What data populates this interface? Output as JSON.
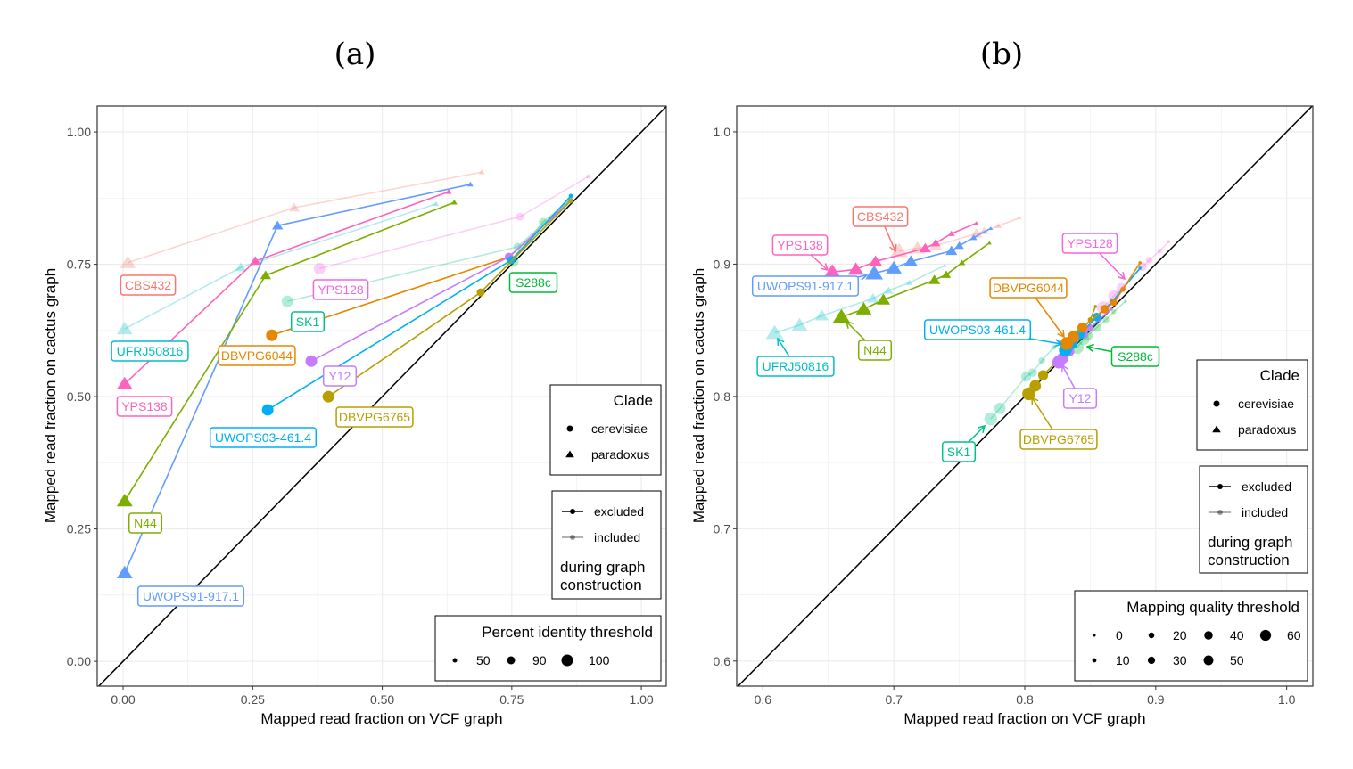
{
  "chart_data": [
    {
      "type": "scatter",
      "title": "(a)",
      "xlabel": "Mapped read fraction on VCF graph",
      "ylabel": "Mapped read fraction on cactus graph",
      "xlim": [
        -0.05,
        1.048
      ],
      "ylim": [
        -0.047,
        1.049
      ],
      "xticks": [
        "0.00",
        "0.25",
        "0.50",
        "0.75",
        "1.00"
      ],
      "yticks": [
        "0.00",
        "0.25",
        "0.50",
        "0.75",
        "1.00"
      ],
      "grid": true,
      "diagonal": "y = x",
      "legends": {
        "clade": {
          "title": "Clade",
          "items": [
            "cerevisiae",
            "paradoxus"
          ]
        },
        "graph": {
          "items": [
            "excluded",
            "included"
          ],
          "caption": [
            "during graph",
            "construction"
          ]
        },
        "size": {
          "title": "Percent identity threshold",
          "items": [
            "50",
            "90",
            "100"
          ]
        }
      },
      "series": [
        {
          "name": "CBS432",
          "clade": "paradoxus",
          "graph": "included",
          "color": "#F8766D",
          "points": [
            {
              "t": 100,
              "x": 0.009,
              "y": 0.753
            },
            {
              "t": 90,
              "x": 0.33,
              "y": 0.857
            },
            {
              "t": 50,
              "x": 0.692,
              "y": 0.924
            }
          ]
        },
        {
          "name": "UFRJ50816",
          "clade": "paradoxus",
          "graph": "included",
          "color": "#00BFC4",
          "points": [
            {
              "t": 100,
              "x": 0.003,
              "y": 0.628
            },
            {
              "t": 90,
              "x": 0.227,
              "y": 0.744
            },
            {
              "t": 50,
              "x": 0.604,
              "y": 0.864
            }
          ]
        },
        {
          "name": "YPS128",
          "clade": "cerevisiae",
          "graph": "included",
          "color": "#F564E3",
          "points": [
            {
              "t": 100,
              "x": 0.379,
              "y": 0.742
            },
            {
              "t": 90,
              "x": 0.766,
              "y": 0.84
            },
            {
              "t": 50,
              "x": 0.898,
              "y": 0.916
            }
          ]
        },
        {
          "name": "SK1",
          "clade": "cerevisiae",
          "graph": "included",
          "color": "#00C08B",
          "points": [
            {
              "t": 100,
              "x": 0.317,
              "y": 0.68
            },
            {
              "t": 90,
              "x": 0.761,
              "y": 0.783
            },
            {
              "t": 50,
              "x": 0.86,
              "y": 0.87
            }
          ]
        },
        {
          "name": "S288c",
          "clade": "cerevisiae",
          "graph": "included",
          "color": "#00BA38",
          "points": [
            {
              "t": 100,
              "x": 0.752,
              "y": 0.756
            },
            {
              "t": 90,
              "x": 0.81,
              "y": 0.83
            },
            {
              "t": 50,
              "x": 0.864,
              "y": 0.872
            }
          ]
        },
        {
          "name": "UWOPS91-917.1",
          "clade": "paradoxus",
          "graph": "excluded",
          "color": "#619CFF",
          "points": [
            {
              "t": 100,
              "x": 0.003,
              "y": 0.167
            },
            {
              "t": 90,
              "x": 0.298,
              "y": 0.823
            },
            {
              "t": 50,
              "x": 0.67,
              "y": 0.901
            }
          ]
        },
        {
          "name": "YPS138",
          "clade": "paradoxus",
          "graph": "excluded",
          "color": "#FF62BC",
          "points": [
            {
              "t": 100,
              "x": 0.003,
              "y": 0.524
            },
            {
              "t": 90,
              "x": 0.255,
              "y": 0.756
            },
            {
              "t": 50,
              "x": 0.628,
              "y": 0.887
            }
          ]
        },
        {
          "name": "N44",
          "clade": "paradoxus",
          "graph": "excluded",
          "color": "#7CAE00",
          "points": [
            {
              "t": 100,
              "x": 0.003,
              "y": 0.303
            },
            {
              "t": 90,
              "x": 0.275,
              "y": 0.729
            },
            {
              "t": 50,
              "x": 0.639,
              "y": 0.867
            }
          ]
        },
        {
          "name": "DBVPG6044",
          "clade": "cerevisiae",
          "graph": "excluded",
          "color": "#E58700",
          "points": [
            {
              "t": 100,
              "x": 0.287,
              "y": 0.616
            },
            {
              "t": 90,
              "x": 0.745,
              "y": 0.764
            },
            {
              "t": 50,
              "x": 0.864,
              "y": 0.87
            }
          ]
        },
        {
          "name": "Y12",
          "clade": "cerevisiae",
          "graph": "excluded",
          "color": "#C77CFF",
          "points": [
            {
              "t": 100,
              "x": 0.363,
              "y": 0.567
            },
            {
              "t": 90,
              "x": 0.744,
              "y": 0.764
            },
            {
              "t": 50,
              "x": 0.864,
              "y": 0.87
            }
          ]
        },
        {
          "name": "UWOPS03-461.4",
          "clade": "cerevisiae",
          "graph": "excluded",
          "color": "#00B0F6",
          "points": [
            {
              "t": 100,
              "x": 0.279,
              "y": 0.475
            },
            {
              "t": 90,
              "x": 0.749,
              "y": 0.758
            },
            {
              "t": 50,
              "x": 0.864,
              "y": 0.879
            }
          ]
        },
        {
          "name": "DBVPG6765",
          "clade": "cerevisiae",
          "graph": "excluded",
          "color": "#B79F00",
          "points": [
            {
              "t": 100,
              "x": 0.396,
              "y": 0.5
            },
            {
              "t": 90,
              "x": 0.69,
              "y": 0.697
            },
            {
              "t": 50,
              "x": 0.864,
              "y": 0.87
            }
          ]
        }
      ]
    },
    {
      "type": "scatter",
      "title": "(b)",
      "xlabel": "Mapped read fraction on VCF graph",
      "ylabel": "Mapped read fraction on cactus graph",
      "xlim": [
        0.58,
        1.02
      ],
      "ylim": [
        0.581,
        1.0195
      ],
      "xticks": [
        "0.6",
        "0.7",
        "0.8",
        "0.9",
        "1.0"
      ],
      "yticks": [
        "0.6",
        "0.7",
        "0.8",
        "0.9",
        "1.0"
      ],
      "grid": true,
      "diagonal": "y = x",
      "legends": {
        "clade": {
          "title": "Clade",
          "items": [
            "cerevisiae",
            "paradoxus"
          ]
        },
        "graph": {
          "items": [
            "excluded",
            "included"
          ],
          "caption": [
            "during graph",
            "construction"
          ]
        },
        "size": {
          "title": "Mapping quality threshold",
          "items": [
            "0",
            "10",
            "20",
            "30",
            "40",
            "50",
            "60"
          ]
        }
      },
      "series": [
        {
          "name": "CBS432",
          "clade": "paradoxus",
          "graph": "included",
          "color": "#F8766D",
          "points": [
            {
              "t": 60,
              "x": 0.704,
              "y": 0.91
            },
            {
              "t": 50,
              "x": 0.718,
              "y": 0.912
            },
            {
              "t": 40,
              "x": 0.732,
              "y": 0.914
            },
            {
              "t": 30,
              "x": 0.763,
              "y": 0.923
            },
            {
              "t": 20,
              "x": 0.769,
              "y": 0.925
            },
            {
              "t": 10,
              "x": 0.78,
              "y": 0.929
            },
            {
              "t": 0,
              "x": 0.796,
              "y": 0.935
            }
          ]
        },
        {
          "name": "UFRJ50816",
          "clade": "paradoxus",
          "graph": "included",
          "color": "#00BFC4",
          "points": [
            {
              "t": 60,
              "x": 0.609,
              "y": 0.848
            },
            {
              "t": 50,
              "x": 0.628,
              "y": 0.854
            },
            {
              "t": 40,
              "x": 0.645,
              "y": 0.861
            },
            {
              "t": 30,
              "x": 0.684,
              "y": 0.874
            },
            {
              "t": 20,
              "x": 0.696,
              "y": 0.88
            },
            {
              "t": 10,
              "x": 0.712,
              "y": 0.886
            },
            {
              "t": 0,
              "x": 0.739,
              "y": 0.899
            }
          ]
        },
        {
          "name": "SK1",
          "clade": "cerevisiae",
          "graph": "included",
          "color": "#00C08B",
          "points": [
            {
              "t": 60,
              "x": 0.774,
              "y": 0.783
            },
            {
              "t": 50,
              "x": 0.781,
              "y": 0.791
            },
            {
              "t": 40,
              "x": 0.801,
              "y": 0.815
            },
            {
              "t": 30,
              "x": 0.806,
              "y": 0.818
            },
            {
              "t": 20,
              "x": 0.813,
              "y": 0.827
            },
            {
              "t": 10,
              "x": 0.822,
              "y": 0.837
            },
            {
              "t": 0,
              "x": 0.827,
              "y": 0.842
            }
          ]
        },
        {
          "name": "S288c",
          "clade": "cerevisiae",
          "graph": "included",
          "color": "#00BA38",
          "points": [
            {
              "t": 60,
              "x": 0.84,
              "y": 0.837
            },
            {
              "t": 50,
              "x": 0.845,
              "y": 0.843
            },
            {
              "t": 40,
              "x": 0.848,
              "y": 0.846
            },
            {
              "t": 30,
              "x": 0.855,
              "y": 0.852
            },
            {
              "t": 20,
              "x": 0.862,
              "y": 0.858
            },
            {
              "t": 10,
              "x": 0.868,
              "y": 0.864
            },
            {
              "t": 0,
              "x": 0.877,
              "y": 0.872
            }
          ]
        },
        {
          "name": "YPS128",
          "clade": "cerevisiae",
          "graph": "included",
          "color": "#F564E3",
          "points": [
            {
              "t": 60,
              "x": 0.86,
              "y": 0.867
            },
            {
              "t": 50,
              "x": 0.868,
              "y": 0.876
            },
            {
              "t": 40,
              "x": 0.874,
              "y": 0.882
            },
            {
              "t": 30,
              "x": 0.89,
              "y": 0.898
            },
            {
              "t": 20,
              "x": 0.895,
              "y": 0.903
            },
            {
              "t": 10,
              "x": 0.903,
              "y": 0.91
            },
            {
              "t": 0,
              "x": 0.91,
              "y": 0.917
            }
          ]
        },
        {
          "name": "YPS138",
          "clade": "paradoxus",
          "graph": "excluded",
          "color": "#FF62BC",
          "points": [
            {
              "t": 60,
              "x": 0.653,
              "y": 0.894
            },
            {
              "t": 50,
              "x": 0.671,
              "y": 0.896
            },
            {
              "t": 40,
              "x": 0.686,
              "y": 0.902
            },
            {
              "t": 30,
              "x": 0.724,
              "y": 0.912
            },
            {
              "t": 20,
              "x": 0.732,
              "y": 0.916
            },
            {
              "t": 10,
              "x": 0.744,
              "y": 0.923
            },
            {
              "t": 0,
              "x": 0.763,
              "y": 0.931
            }
          ]
        },
        {
          "name": "UWOPS91-917.1",
          "clade": "paradoxus",
          "graph": "excluded",
          "color": "#619CFF",
          "points": [
            {
              "t": 60,
              "x": 0.685,
              "y": 0.893
            },
            {
              "t": 50,
              "x": 0.7,
              "y": 0.897
            },
            {
              "t": 40,
              "x": 0.713,
              "y": 0.902
            },
            {
              "t": 30,
              "x": 0.744,
              "y": 0.91
            },
            {
              "t": 20,
              "x": 0.75,
              "y": 0.914
            },
            {
              "t": 10,
              "x": 0.761,
              "y": 0.92
            },
            {
              "t": 0,
              "x": 0.774,
              "y": 0.927
            }
          ]
        },
        {
          "name": "N44",
          "clade": "paradoxus",
          "graph": "excluded",
          "color": "#7CAE00",
          "points": [
            {
              "t": 60,
              "x": 0.66,
              "y": 0.86
            },
            {
              "t": 50,
              "x": 0.677,
              "y": 0.866
            },
            {
              "t": 40,
              "x": 0.692,
              "y": 0.873
            },
            {
              "t": 30,
              "x": 0.731,
              "y": 0.888
            },
            {
              "t": 20,
              "x": 0.74,
              "y": 0.892
            },
            {
              "t": 10,
              "x": 0.752,
              "y": 0.901
            },
            {
              "t": 0,
              "x": 0.773,
              "y": 0.916
            }
          ]
        },
        {
          "name": "DBVPG6765",
          "clade": "cerevisiae",
          "graph": "excluded",
          "color": "#B79F00",
          "points": [
            {
              "t": 60,
              "x": 0.803,
              "y": 0.802
            },
            {
              "t": 50,
              "x": 0.808,
              "y": 0.808
            },
            {
              "t": 40,
              "x": 0.814,
              "y": 0.816
            },
            {
              "t": 30,
              "x": 0.83,
              "y": 0.832
            },
            {
              "t": 20,
              "x": 0.84,
              "y": 0.845
            },
            {
              "t": 10,
              "x": 0.85,
              "y": 0.858
            },
            {
              "t": 0,
              "x": 0.854,
              "y": 0.868
            }
          ]
        },
        {
          "name": "Y12",
          "clade": "cerevisiae",
          "graph": "excluded",
          "color": "#C77CFF",
          "points": [
            {
              "t": 60,
              "x": 0.826,
              "y": 0.826
            },
            {
              "t": 50,
              "x": 0.829,
              "y": 0.829
            },
            {
              "t": 40,
              "x": 0.834,
              "y": 0.834
            },
            {
              "t": 30,
              "x": 0.845,
              "y": 0.847
            },
            {
              "t": 20,
              "x": 0.85,
              "y": 0.852
            },
            {
              "t": 10,
              "x": 0.857,
              "y": 0.858
            },
            {
              "t": 0,
              "x": 0.866,
              "y": 0.866
            }
          ]
        },
        {
          "name": "UWOPS03-461.4",
          "clade": "cerevisiae",
          "graph": "excluded",
          "color": "#00B0F6",
          "points": [
            {
              "t": 60,
              "x": 0.831,
              "y": 0.835
            },
            {
              "t": 50,
              "x": 0.836,
              "y": 0.84
            },
            {
              "t": 40,
              "x": 0.842,
              "y": 0.847
            },
            {
              "t": 30,
              "x": 0.855,
              "y": 0.86
            },
            {
              "t": 20,
              "x": 0.861,
              "y": 0.866
            },
            {
              "t": 10,
              "x": 0.867,
              "y": 0.872
            },
            {
              "t": 0,
              "x": 0.888,
              "y": 0.897
            }
          ]
        },
        {
          "name": "DBVPG6044",
          "clade": "cerevisiae",
          "graph": "excluded",
          "color": "#E58700",
          "points": [
            {
              "t": 60,
              "x": 0.832,
              "y": 0.84
            },
            {
              "t": 50,
              "x": 0.837,
              "y": 0.845
            },
            {
              "t": 40,
              "x": 0.844,
              "y": 0.852
            },
            {
              "t": 30,
              "x": 0.861,
              "y": 0.866
            },
            {
              "t": 20,
              "x": 0.868,
              "y": 0.871
            },
            {
              "t": 10,
              "x": 0.875,
              "y": 0.881
            },
            {
              "t": 0,
              "x": 0.888,
              "y": 0.901
            }
          ]
        }
      ]
    }
  ]
}
